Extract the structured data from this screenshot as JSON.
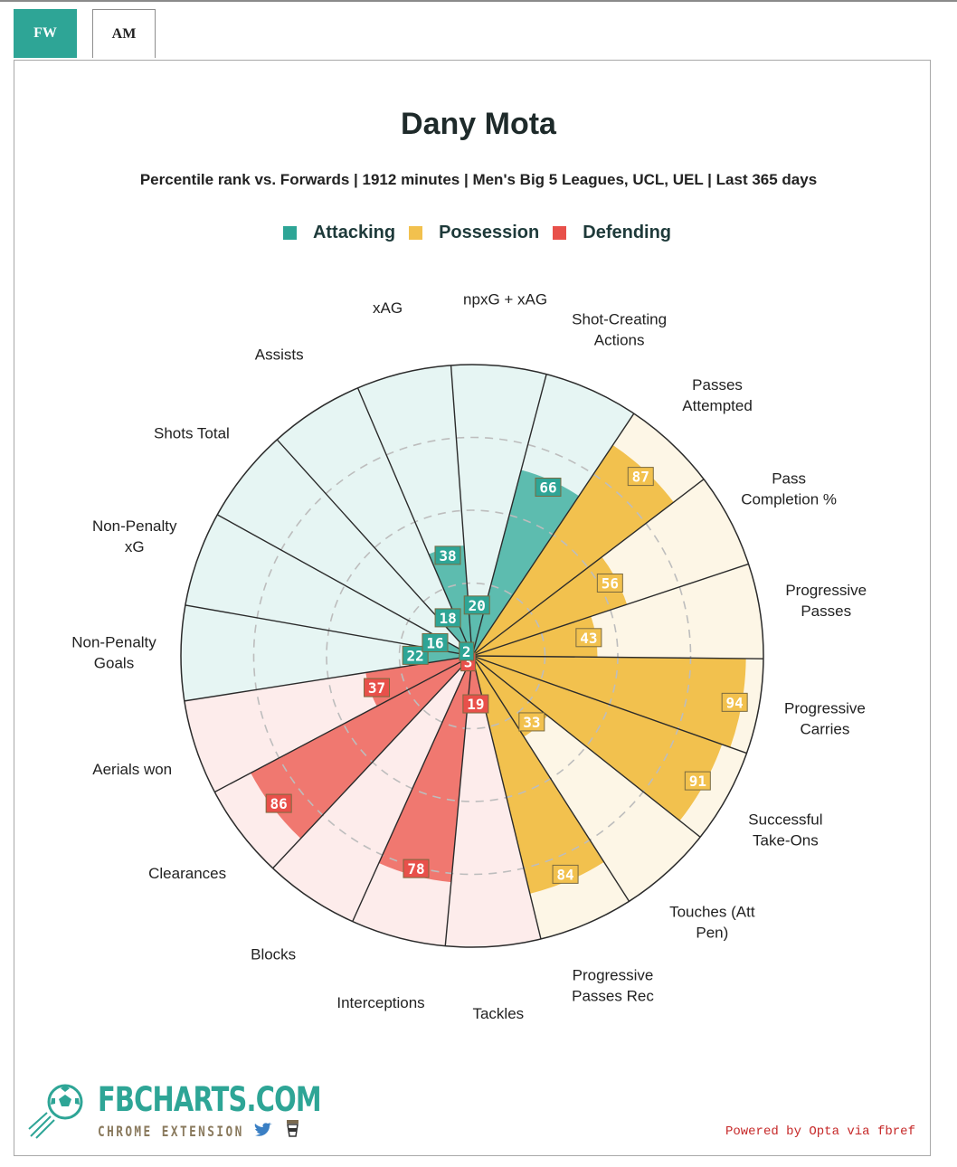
{
  "tabs": [
    {
      "label": "FW",
      "active": true
    },
    {
      "label": "AM",
      "active": false
    }
  ],
  "legend": [
    {
      "label": "Attacking",
      "color": "#2ea596"
    },
    {
      "label": "Possession",
      "color": "#f2c14e"
    },
    {
      "label": "Defending",
      "color": "#e8504a"
    }
  ],
  "colors": {
    "attacking": "#2ea596",
    "attacking_fill": "#5dbcaf",
    "attacking_bg": "#e6f5f3",
    "possession": "#f2c14e",
    "possession_bg": "#fdf6e6",
    "defending": "#e8504a",
    "defending_fill": "#f07870",
    "defending_bg": "#fdeceb"
  },
  "chart_data": {
    "type": "radar-polar-bar",
    "title": "Dany Mota",
    "subtitle": "Percentile rank vs. Forwards | 1912 minutes | Men's Big 5 Leagues, UCL, UEL | Last 365 days",
    "range": [
      0,
      100
    ],
    "grid_rings": [
      25,
      50,
      75,
      100
    ],
    "stats": [
      {
        "label": [
          "npxG + xAG"
        ],
        "value": 20,
        "group": "attacking"
      },
      {
        "label": [
          "Shot-Creating",
          "Actions"
        ],
        "value": 66,
        "group": "attacking"
      },
      {
        "label": [
          "Passes",
          "Attempted"
        ],
        "value": 87,
        "group": "possession"
      },
      {
        "label": [
          "Pass",
          "Completion %"
        ],
        "value": 56,
        "group": "possession"
      },
      {
        "label": [
          "Progressive",
          "Passes"
        ],
        "value": 43,
        "group": "possession"
      },
      {
        "label": [
          "Progressive",
          "Carries"
        ],
        "value": 94,
        "group": "possession"
      },
      {
        "label": [
          "Successful",
          "Take-Ons"
        ],
        "value": 91,
        "group": "possession"
      },
      {
        "label": [
          "Touches (Att",
          "Pen)"
        ],
        "value": 33,
        "group": "possession"
      },
      {
        "label": [
          "Progressive",
          "Passes Rec"
        ],
        "value": 84,
        "group": "possession"
      },
      {
        "label": [
          "Tackles"
        ],
        "value": 19,
        "group": "defending"
      },
      {
        "label": [
          "Interceptions"
        ],
        "value": 78,
        "group": "defending"
      },
      {
        "label": [
          "Blocks"
        ],
        "value": 3,
        "group": "defending"
      },
      {
        "label": [
          "Clearances"
        ],
        "value": 86,
        "group": "defending"
      },
      {
        "label": [
          "Aerials won"
        ],
        "value": 37,
        "group": "defending"
      },
      {
        "label": [
          "Non-Penalty",
          "Goals"
        ],
        "value": 22,
        "group": "attacking"
      },
      {
        "label": [
          "Non-Penalty",
          "xG"
        ],
        "value": 16,
        "group": "attacking"
      },
      {
        "label": [
          "Shots Total"
        ],
        "value": 2,
        "group": "attacking"
      },
      {
        "label": [
          "Assists"
        ],
        "value": 18,
        "group": "attacking"
      },
      {
        "label": [
          "xAG"
        ],
        "value": 38,
        "group": "attacking"
      }
    ]
  },
  "logo": {
    "main": "FBCHARTS.COM",
    "sub": "CHROME EXTENSION"
  },
  "footer": {
    "powered": "Powered by Opta via fbref"
  }
}
